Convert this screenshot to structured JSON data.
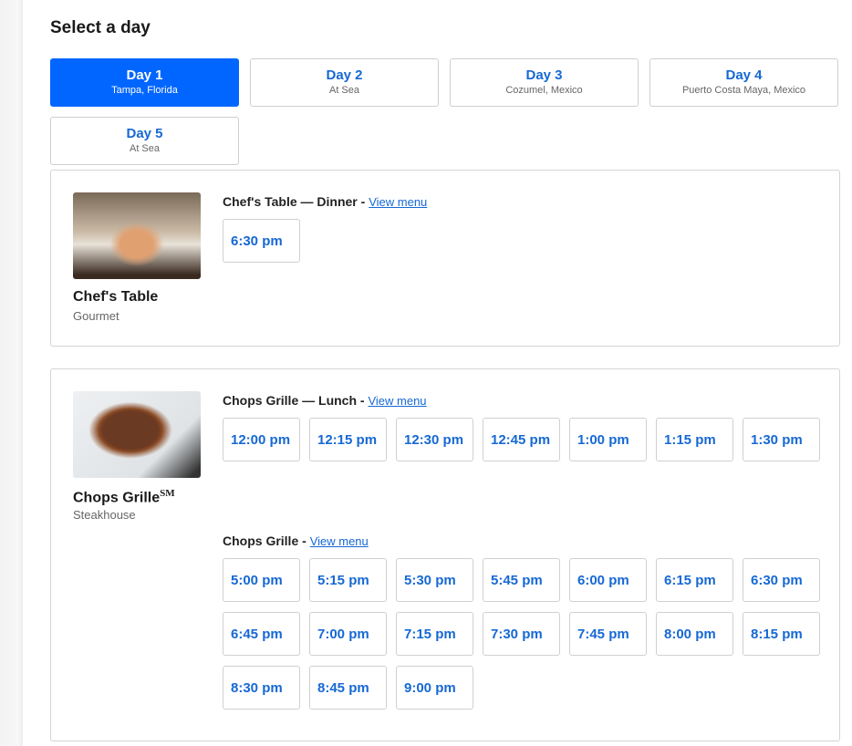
{
  "title": "Select a day",
  "days": [
    {
      "label": "Day 1",
      "sub": "Tampa, Florida",
      "active": true
    },
    {
      "label": "Day 2",
      "sub": "At Sea"
    },
    {
      "label": "Day 3",
      "sub": "Cozumel, Mexico"
    },
    {
      "label": "Day 4",
      "sub": "Puerto Costa Maya, Mexico"
    },
    {
      "label": "Day 5",
      "sub": "At Sea"
    }
  ],
  "restaurants": [
    {
      "name": "Chef's Table",
      "mark": "",
      "type": "Gourmet",
      "sections": [
        {
          "title": "Chef's Table — Dinner - ",
          "link": "View menu",
          "slots": [
            "6:30 pm"
          ]
        }
      ]
    },
    {
      "name": "Chops Grille",
      "mark": "SM",
      "type": "Steakhouse",
      "sections": [
        {
          "title": "Chops Grille — Lunch - ",
          "link": "View menu",
          "slots": [
            "12:00 pm",
            "12:15 pm",
            "12:30 pm",
            "12:45 pm",
            "1:00 pm",
            "1:15 pm",
            "1:30 pm"
          ]
        },
        {
          "title": "Chops Grille - ",
          "link": "View menu",
          "slots": [
            "5:00 pm",
            "5:15 pm",
            "5:30 pm",
            "5:45 pm",
            "6:00 pm",
            "6:15 pm",
            "6:30 pm",
            "6:45 pm",
            "7:00 pm",
            "7:15 pm",
            "7:30 pm",
            "7:45 pm",
            "8:00 pm",
            "8:15 pm",
            "8:30 pm",
            "8:45 pm",
            "9:00 pm"
          ]
        }
      ]
    }
  ],
  "colors": {
    "accent": "#0066ff",
    "link": "#1668d4"
  }
}
